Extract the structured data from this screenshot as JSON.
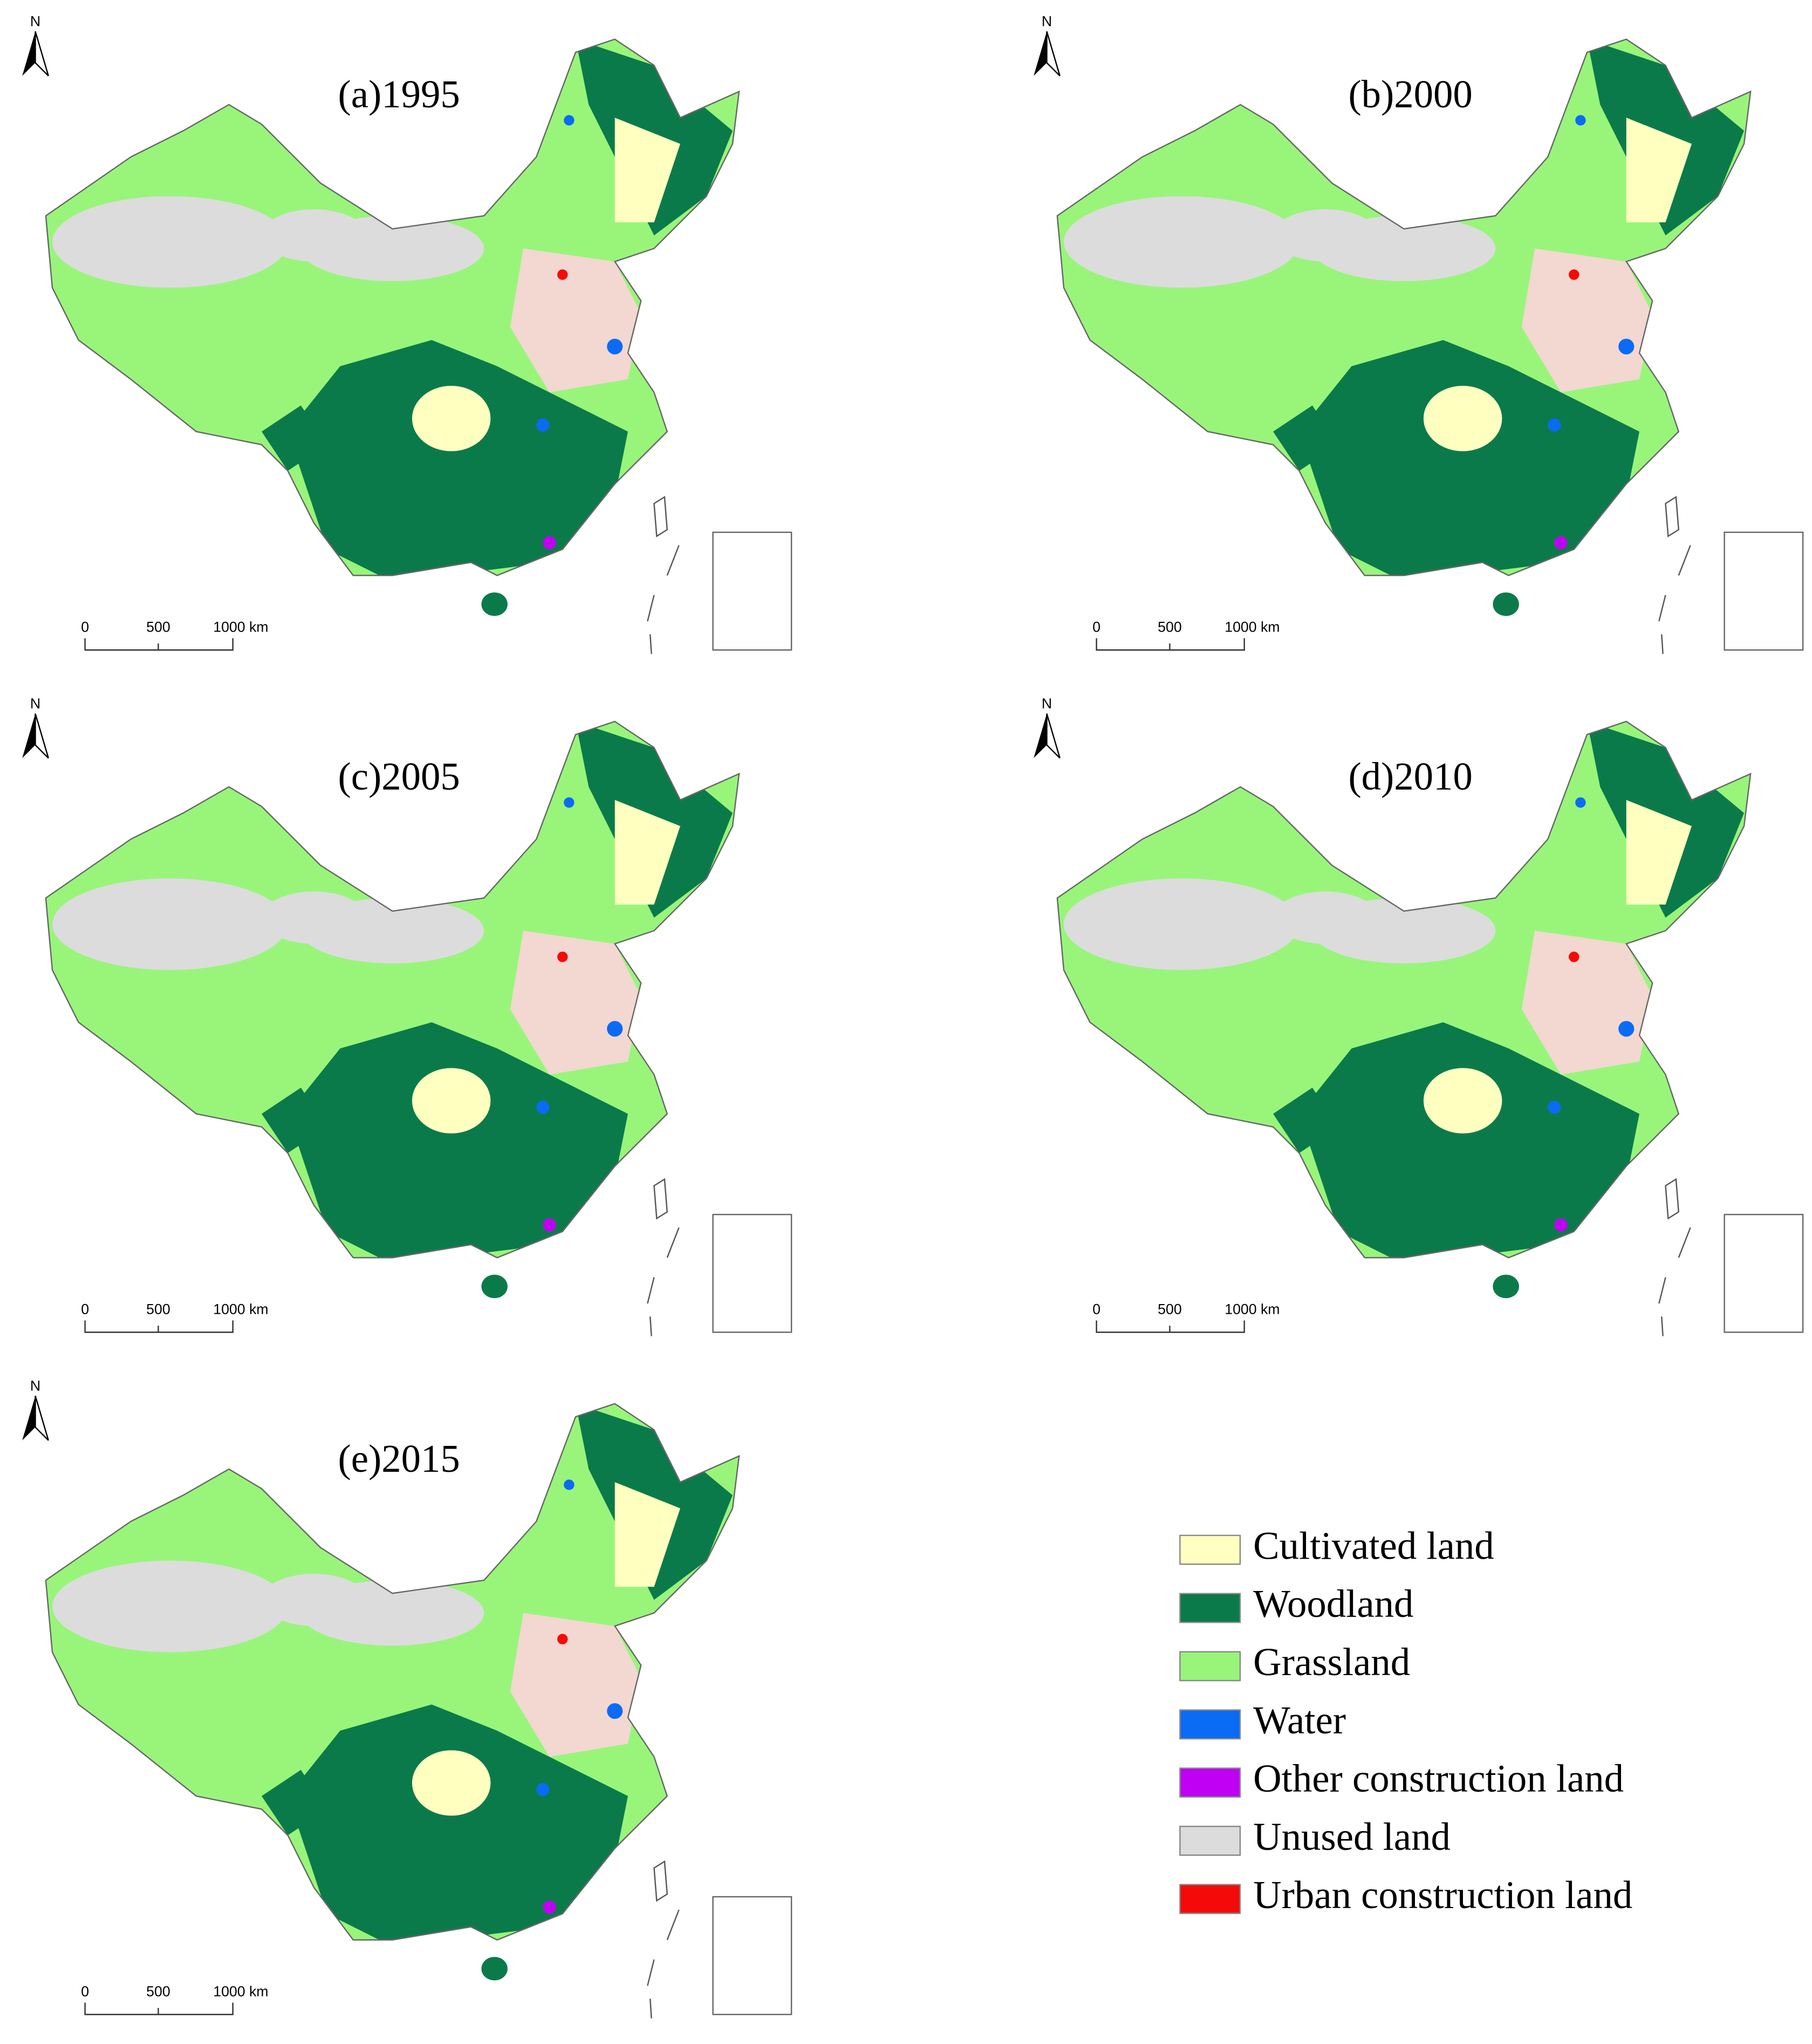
{
  "panels": [
    {
      "label": "(a)1995",
      "north": "N",
      "scale_labels": [
        "0",
        "500",
        "1000 km"
      ]
    },
    {
      "label": "(b)2000",
      "north": "N",
      "scale_labels": [
        "0",
        "500",
        "1000 km"
      ]
    },
    {
      "label": "(c)2005",
      "north": "N",
      "scale_labels": [
        "0",
        "500",
        "1000 km"
      ]
    },
    {
      "label": "(d)2010",
      "north": "N",
      "scale_labels": [
        "0",
        "500",
        "1000 km"
      ]
    },
    {
      "label": "(e)2015",
      "north": "N",
      "scale_labels": [
        "0",
        "500",
        "1000 km"
      ]
    }
  ],
  "legend": {
    "items": [
      {
        "label": "Cultivated land",
        "color": "#ffffc0"
      },
      {
        "label": "Woodland",
        "color": "#0b7a4a"
      },
      {
        "label": "Grassland",
        "color": "#98f57a"
      },
      {
        "label": "Water",
        "color": "#0a6bf5"
      },
      {
        "label": "Other construction land",
        "color": "#c000f5"
      },
      {
        "label": "Unused land",
        "color": "#dcdcdc"
      },
      {
        "label": "Urban construction land",
        "color": "#f50a0a"
      }
    ]
  }
}
